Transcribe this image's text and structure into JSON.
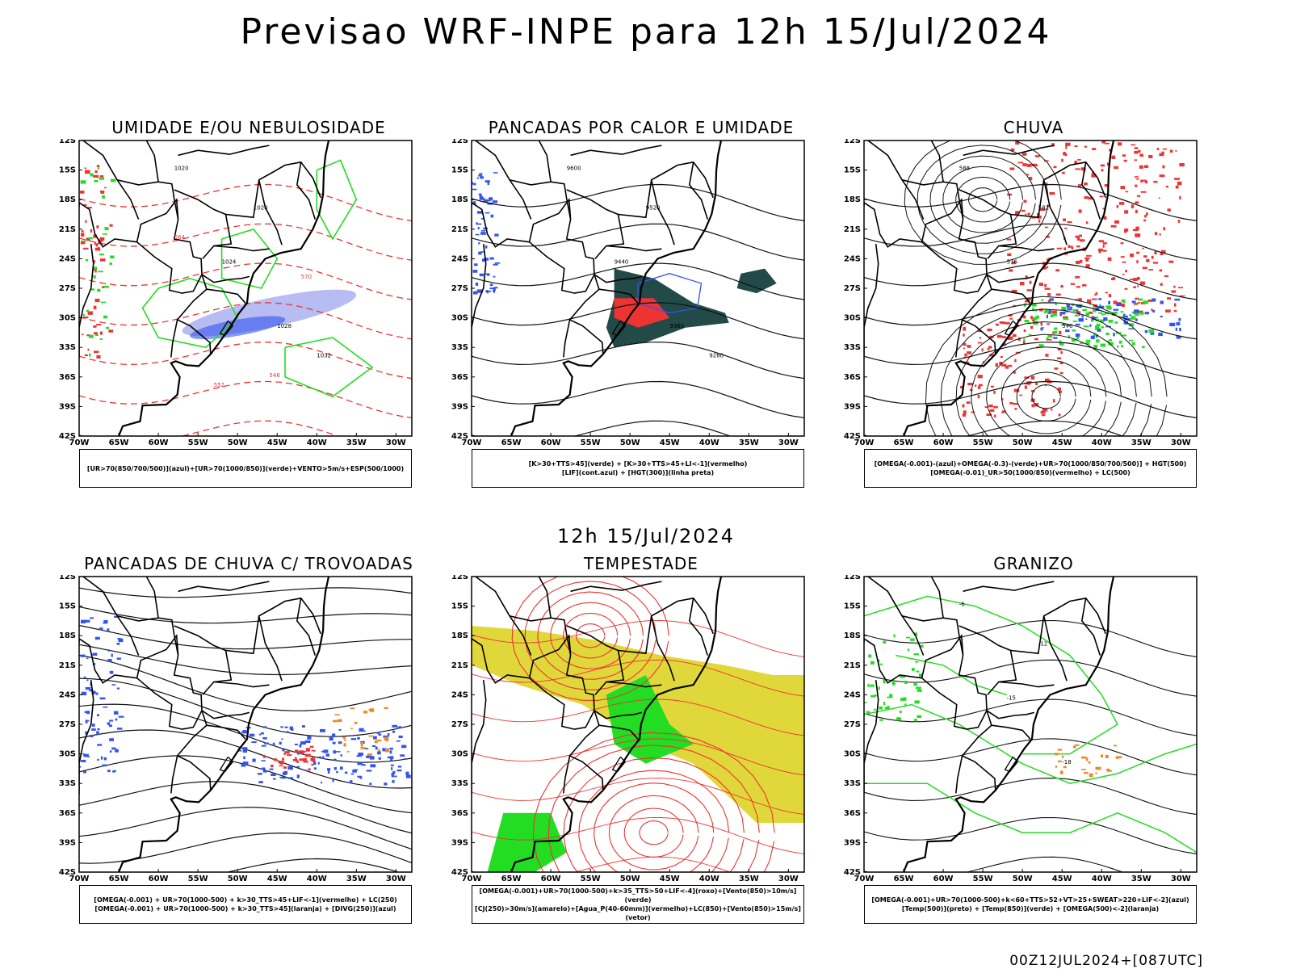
{
  "header": {
    "title": "Previsao WRF-INPE  para 12h 15/Jul/2024",
    "mid_title": "12h 15/Jul/2024",
    "footer": "00Z12JUL2024+[087UTC]"
  },
  "axes": {
    "lat_labels": [
      "12S",
      "15S",
      "18S",
      "21S",
      "24S",
      "27S",
      "30S",
      "33S",
      "36S",
      "39S",
      "42S"
    ],
    "lon_labels": [
      "70W",
      "65W",
      "60W",
      "55W",
      "50W",
      "45W",
      "40W",
      "35W",
      "30W"
    ]
  },
  "colors": {
    "blue": "#3355ee",
    "green": "#22dd22",
    "red": "#ee3333",
    "orange": "#ee8822",
    "yellow": "#e0d83a",
    "darkteal": "#224a48",
    "lavender": "#aab0f0"
  },
  "panels": [
    {
      "title": "UMIDADE E/OU NEBULOSIDADE",
      "legend": [
        "[UR>70(850/700/500)](azul)+[UR>70(1000/850)](verde)+VENTO>5m/s+ESP(500/1000)"
      ],
      "labels": [
        "1020",
        "1020",
        "1024",
        "1028",
        "1032",
        "552",
        "564",
        "570",
        "546"
      ]
    },
    {
      "title": "PANCADAS POR CALOR E UMIDADE",
      "legend": [
        "[K>30+TTS>45](verde) + [K>30+TTS>45+LI<-1](vermelho)",
        "[LIF](cont.azul) + [HGT(300)](linha preta)"
      ],
      "labels": [
        "9600",
        "9520",
        "9440",
        "9360",
        "9280"
      ]
    },
    {
      "title": "CHUVA",
      "legend": [
        "[OMEGA(-0.001)-(azul)+OMEGA(-0.3)-(verde)+UR>70(1000/850/700/500)] + HGT(500)",
        "[OMEGA(-0.01)_UR>50(1000/850)(vermelho) + LC(500)"
      ],
      "labels": [
        "588",
        "582",
        "576",
        "570"
      ]
    },
    {
      "title": "PANCADAS DE CHUVA C/ TROVOADAS",
      "legend": [
        "[OMEGA(-0.001) + UR>70(1000-500) + k>30_TTS>45+LIF<-1](vermelho) + LC(250)",
        "[OMEGA(-0.001) + UR>70(1000-500) + k>30_TTS>45](laranja) + [DIVG(250)](azul)"
      ],
      "labels": []
    },
    {
      "title": "TEMPESTADE",
      "legend": [
        "[OMEGA(-0.001)+UR>70(1000-500)+k>35_TTS>50+LIF<-4](roxo)+[Vento(850)>10m/s](verde)",
        "[CJ(250)>30m/s](amarelo)+[Agua_P(40-60mm)](vermelho)+LC(850)+[Vento(850)>15m/s](vetor)"
      ],
      "labels": []
    },
    {
      "title": "GRANIZO",
      "legend": [
        "[OMEGA(-0.001)+UR>70(1000-500)+k<60+TTS>52+VT>25+SWEAT>220+LIF<-2](azul)",
        "[Temp(500)](preto) + [Temp(850)](verde) + [OMEGA(500)<-2](laranja)"
      ],
      "labels": [
        "-6",
        "-12",
        "-15",
        "-18"
      ]
    }
  ]
}
